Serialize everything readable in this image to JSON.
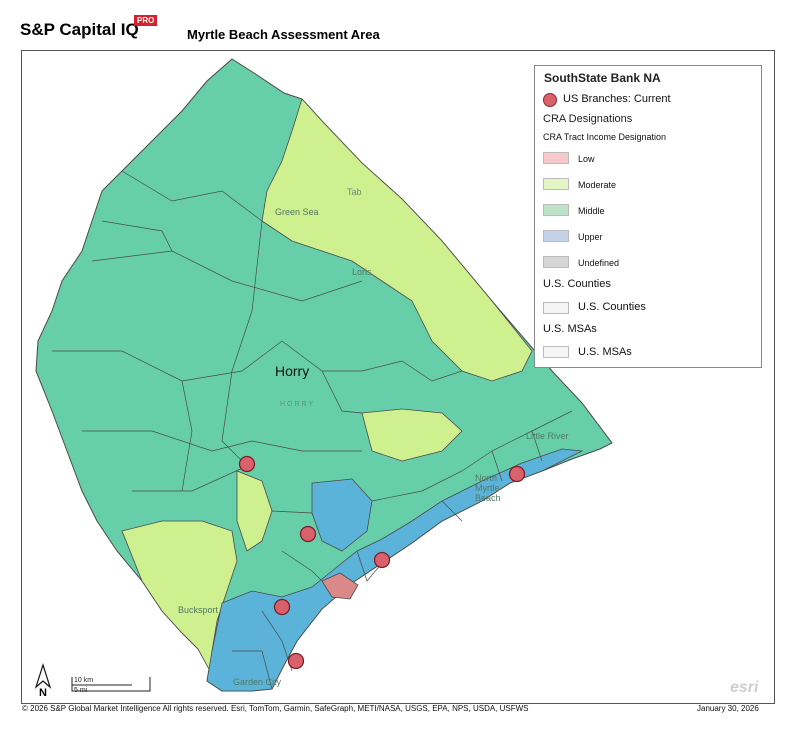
{
  "header": {
    "brand": "S&P Capital IQ",
    "brand_badge": "PRO",
    "title": "Myrtle Beach Assessment Area"
  },
  "legend": {
    "bank": "SouthState Bank NA",
    "branches": "US Branches: Current",
    "cra_title": "CRA Designations",
    "cra_subtitle": "CRA Tract Income Designation",
    "categories": [
      {
        "label": "Low",
        "color": "#f7c9ca"
      },
      {
        "label": "Moderate",
        "color": "#e3f7c4"
      },
      {
        "label": "Middle",
        "color": "#bfe3c9"
      },
      {
        "label": "Upper",
        "color": "#c3d2e8"
      },
      {
        "label": "Undefined",
        "color": "#d6d6d6"
      }
    ],
    "counties_title": "U.S. Counties",
    "counties_item": "U.S. Counties",
    "msas_title": "U.S. MSAs",
    "msas_item": "U.S. MSAs"
  },
  "map": {
    "county_label": "Horry",
    "county_label_faint": "HORRY",
    "places": [
      "Green Sea",
      "Loris",
      "Tab",
      "Little River",
      "North Myrtle Beach",
      "Bucksport",
      "Garden City"
    ],
    "fill_colors": {
      "middle": "#66cfaa",
      "moderate": "#cff08e",
      "upper": "#5cb3d9",
      "low": "#d98a88"
    },
    "branch_count": 6
  },
  "north_arrow": "N",
  "scale": {
    "km": "10 km",
    "mi": "5 mi"
  },
  "watermark": "esri",
  "footer": {
    "copyright": "© 2026  S&P Global Market Intelligence  All rights reserved. Esri, TomTom, Garmin, SafeGraph, METI/NASA, USGS, EPA, NPS, USDA, USFWS",
    "date": "January 30, 2026"
  }
}
